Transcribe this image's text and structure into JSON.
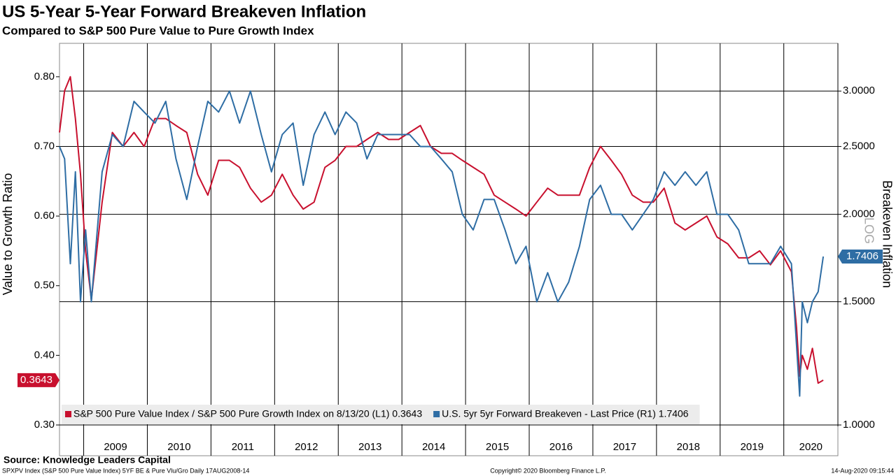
{
  "chart_data": {
    "type": "line",
    "title": "US 5-Year 5-Year Forward Breakeven Inflation",
    "subtitle": "Compared to S&P 500 Pure Value to Pure Growth Index",
    "ylabel": "Value to Growth Ratio",
    "y2label": "Breakeven Inflation",
    "y2scale": "log",
    "y2scale_label": "LOG",
    "grid_axis": "y2",
    "source": "Source: Knowledge Leaders Capital",
    "footer_left": "SPXPV Index (S&P 500 Pure Value Index) 5YF BE & Pure Vlu/Gro  Daily 17AUG2008-14",
    "footer_center": "Copyright© 2020 Bloomberg Finance L.P.",
    "footer_right": "14-Aug-2020 09:15:44",
    "x": [
      2008.62,
      2008.7,
      2008.79,
      2008.87,
      2008.95,
      2009.03,
      2009.12,
      2009.29,
      2009.45,
      2009.62,
      2009.79,
      2009.95,
      2010.12,
      2010.29,
      2010.45,
      2010.62,
      2010.79,
      2010.95,
      2011.12,
      2011.29,
      2011.45,
      2011.62,
      2011.79,
      2011.95,
      2012.12,
      2012.29,
      2012.45,
      2012.62,
      2012.79,
      2012.95,
      2013.12,
      2013.29,
      2013.45,
      2013.62,
      2013.79,
      2013.95,
      2014.12,
      2014.29,
      2014.45,
      2014.62,
      2014.79,
      2014.95,
      2015.12,
      2015.29,
      2015.45,
      2015.62,
      2015.79,
      2015.95,
      2016.12,
      2016.29,
      2016.45,
      2016.62,
      2016.79,
      2016.95,
      2017.12,
      2017.29,
      2017.45,
      2017.62,
      2017.79,
      2017.95,
      2018.12,
      2018.29,
      2018.45,
      2018.62,
      2018.79,
      2018.95,
      2019.12,
      2019.29,
      2019.45,
      2019.62,
      2019.79,
      2019.95,
      2020.12,
      2020.2,
      2020.25,
      2020.29,
      2020.37,
      2020.45,
      2020.54,
      2020.62
    ],
    "series": [
      {
        "name": "S&P 500 Pure Value Index / S&P 500 Pure Growth Index on 8/13/20 (L1) 0.3643",
        "color": "#c8102e",
        "values": [
          0.72,
          0.78,
          0.8,
          0.74,
          0.66,
          0.55,
          0.48,
          0.62,
          0.72,
          0.7,
          0.72,
          0.7,
          0.74,
          0.74,
          0.73,
          0.72,
          0.66,
          0.63,
          0.68,
          0.68,
          0.67,
          0.64,
          0.62,
          0.63,
          0.66,
          0.63,
          0.61,
          0.62,
          0.67,
          0.68,
          0.7,
          0.7,
          0.71,
          0.72,
          0.71,
          0.71,
          0.72,
          0.73,
          0.7,
          0.69,
          0.69,
          0.68,
          0.67,
          0.66,
          0.63,
          0.62,
          0.61,
          0.6,
          0.62,
          0.64,
          0.63,
          0.63,
          0.63,
          0.67,
          0.7,
          0.68,
          0.66,
          0.63,
          0.62,
          0.62,
          0.64,
          0.59,
          0.58,
          0.59,
          0.6,
          0.57,
          0.56,
          0.54,
          0.54,
          0.55,
          0.53,
          0.55,
          0.52,
          0.44,
          0.37,
          0.4,
          0.38,
          0.41,
          0.36,
          0.3643
        ]
      },
      {
        "name": "U.S. 5yr 5yr Forward Breakeven - Last Price (R1) 1.7406",
        "color": "#2e6da4",
        "axis": "y2",
        "values": [
          2.5,
          2.4,
          1.7,
          2.3,
          1.5,
          1.9,
          1.5,
          2.3,
          2.6,
          2.5,
          2.9,
          2.8,
          2.7,
          2.9,
          2.4,
          2.1,
          2.5,
          2.9,
          2.8,
          3.0,
          2.7,
          3.0,
          2.6,
          2.3,
          2.6,
          2.7,
          2.2,
          2.6,
          2.8,
          2.6,
          2.8,
          2.7,
          2.4,
          2.6,
          2.6,
          2.6,
          2.6,
          2.5,
          2.5,
          2.4,
          2.3,
          2.0,
          1.9,
          2.1,
          2.1,
          1.9,
          1.7,
          1.8,
          1.5,
          1.65,
          1.5,
          1.6,
          1.8,
          2.1,
          2.2,
          2.0,
          2.0,
          1.9,
          2.0,
          2.1,
          2.3,
          2.2,
          2.3,
          2.2,
          2.3,
          2.0,
          2.0,
          1.9,
          1.7,
          1.7,
          1.7,
          1.8,
          1.7,
          1.3,
          1.1,
          1.5,
          1.4,
          1.5,
          1.55,
          1.7406
        ]
      }
    ],
    "xlim": [
      2008.62,
      2020.85
    ],
    "xticks": [
      {
        "value": 2009,
        "label": "2009"
      },
      {
        "value": 2010,
        "label": "2010"
      },
      {
        "value": 2011,
        "label": "2011"
      },
      {
        "value": 2012,
        "label": "2012"
      },
      {
        "value": 2013,
        "label": "2013"
      },
      {
        "value": 2014,
        "label": "2014"
      },
      {
        "value": 2015,
        "label": "2015"
      },
      {
        "value": 2016,
        "label": "2016"
      },
      {
        "value": 2017,
        "label": "2017"
      },
      {
        "value": 2018,
        "label": "2018"
      },
      {
        "value": 2019,
        "label": "2019"
      },
      {
        "value": 2020,
        "label": "2020"
      }
    ],
    "ylim": [
      0.3,
      0.848
    ],
    "yticks": [
      {
        "value": 0.3,
        "label": "0.30"
      },
      {
        "value": 0.4,
        "label": "0.40"
      },
      {
        "value": 0.5,
        "label": "0.50"
      },
      {
        "value": 0.6,
        "label": "0.60"
      },
      {
        "value": 0.7,
        "label": "0.70"
      },
      {
        "value": 0.8,
        "label": "0.80"
      }
    ],
    "y2lim": [
      1.0,
      3.51
    ],
    "y2ticks": [
      {
        "value": 1,
        "label": "1.0000"
      },
      {
        "value": 1.5,
        "label": "1.5000"
      },
      {
        "value": 2,
        "label": "2.0000"
      },
      {
        "value": 2.5,
        "label": "2.5000"
      },
      {
        "value": 3,
        "label": "3.0000"
      }
    ]
  }
}
